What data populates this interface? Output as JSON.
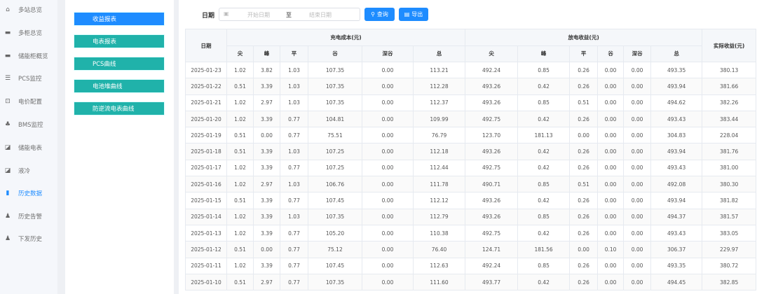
{
  "sidebar": {
    "items": [
      {
        "label": "多站总览",
        "icon": "home-icon"
      },
      {
        "label": "多柜总览",
        "icon": "monitor-icon"
      },
      {
        "label": "储能柜概览",
        "icon": "monitor-icon"
      },
      {
        "label": "PCS监控",
        "icon": "list-icon"
      },
      {
        "label": "电价配置",
        "icon": "board-icon"
      },
      {
        "label": "BMS监控",
        "icon": "sitemap-icon"
      },
      {
        "label": "储能电表",
        "icon": "chart-box-icon"
      },
      {
        "label": "液冷",
        "icon": "chart-box-icon"
      },
      {
        "label": "历史数据",
        "icon": "bar-chart-icon",
        "active": true
      },
      {
        "label": "历史告警",
        "icon": "user-icon"
      },
      {
        "label": "下发历史",
        "icon": "user-icon"
      }
    ]
  },
  "panel": {
    "buttons": [
      {
        "label": "收益报表",
        "active": true
      },
      {
        "label": "电表报表"
      },
      {
        "label": "PCS曲线"
      },
      {
        "label": "电池堆曲线"
      },
      {
        "label": "防逆流电表曲线"
      }
    ]
  },
  "toolbar": {
    "date_label": "日期",
    "start_placeholder": "开始日期",
    "separator": "至",
    "end_placeholder": "结束日期",
    "query_label": "查询",
    "export_label": "导出"
  },
  "colors": {
    "accent": "#1e8cff",
    "teal": "#20b2aa"
  },
  "table": {
    "date_header": "日期",
    "charge_header": "充电成本(元)",
    "discharge_header": "放电收益(元)",
    "net_header": "实际收益(元)",
    "sub_headers": [
      "尖",
      "峰",
      "平",
      "谷",
      "深谷",
      "总"
    ],
    "rows": [
      [
        "2025-01-23",
        "1.02",
        "3.82",
        "1.03",
        "107.35",
        "0.00",
        "113.21",
        "492.24",
        "0.85",
        "0.26",
        "0.00",
        "0.00",
        "493.35",
        "380.13"
      ],
      [
        "2025-01-22",
        "0.51",
        "3.39",
        "1.03",
        "107.35",
        "0.00",
        "112.28",
        "493.26",
        "0.42",
        "0.26",
        "0.00",
        "0.00",
        "493.94",
        "381.66"
      ],
      [
        "2025-01-21",
        "1.02",
        "2.97",
        "1.03",
        "107.35",
        "0.00",
        "112.37",
        "493.26",
        "0.85",
        "0.51",
        "0.00",
        "0.00",
        "494.62",
        "382.26"
      ],
      [
        "2025-01-20",
        "1.02",
        "3.39",
        "0.77",
        "104.81",
        "0.00",
        "109.99",
        "492.75",
        "0.42",
        "0.26",
        "0.00",
        "0.00",
        "493.43",
        "383.44"
      ],
      [
        "2025-01-19",
        "0.51",
        "0.00",
        "0.77",
        "75.51",
        "0.00",
        "76.79",
        "123.70",
        "181.13",
        "0.00",
        "0.00",
        "0.00",
        "304.83",
        "228.04"
      ],
      [
        "2025-01-18",
        "0.51",
        "3.39",
        "1.03",
        "107.25",
        "0.00",
        "112.18",
        "493.26",
        "0.42",
        "0.26",
        "0.00",
        "0.00",
        "493.94",
        "381.76"
      ],
      [
        "2025-01-17",
        "1.02",
        "3.39",
        "0.77",
        "107.25",
        "0.00",
        "112.44",
        "492.75",
        "0.42",
        "0.26",
        "0.00",
        "0.00",
        "493.43",
        "381.00"
      ],
      [
        "2025-01-16",
        "1.02",
        "2.97",
        "1.03",
        "106.76",
        "0.00",
        "111.78",
        "490.71",
        "0.85",
        "0.51",
        "0.00",
        "0.00",
        "492.08",
        "380.30"
      ],
      [
        "2025-01-15",
        "0.51",
        "3.39",
        "0.77",
        "107.45",
        "0.00",
        "112.12",
        "493.26",
        "0.42",
        "0.26",
        "0.00",
        "0.00",
        "493.94",
        "381.82"
      ],
      [
        "2025-01-14",
        "1.02",
        "3.39",
        "1.03",
        "107.35",
        "0.00",
        "112.79",
        "493.26",
        "0.85",
        "0.26",
        "0.00",
        "0.00",
        "494.37",
        "381.57"
      ],
      [
        "2025-01-13",
        "1.02",
        "3.39",
        "0.77",
        "105.20",
        "0.00",
        "110.38",
        "492.75",
        "0.42",
        "0.26",
        "0.00",
        "0.00",
        "493.43",
        "383.05"
      ],
      [
        "2025-01-12",
        "0.51",
        "0.00",
        "0.77",
        "75.12",
        "0.00",
        "76.40",
        "124.71",
        "181.56",
        "0.00",
        "0.10",
        "0.00",
        "306.37",
        "229.97"
      ],
      [
        "2025-01-11",
        "1.02",
        "3.39",
        "0.77",
        "107.45",
        "0.00",
        "112.63",
        "492.24",
        "0.85",
        "0.26",
        "0.00",
        "0.00",
        "493.35",
        "380.72"
      ],
      [
        "2025-01-10",
        "0.51",
        "2.97",
        "0.77",
        "107.35",
        "0.00",
        "111.60",
        "493.77",
        "0.42",
        "0.26",
        "0.00",
        "0.00",
        "494.45",
        "382.85"
      ]
    ]
  }
}
